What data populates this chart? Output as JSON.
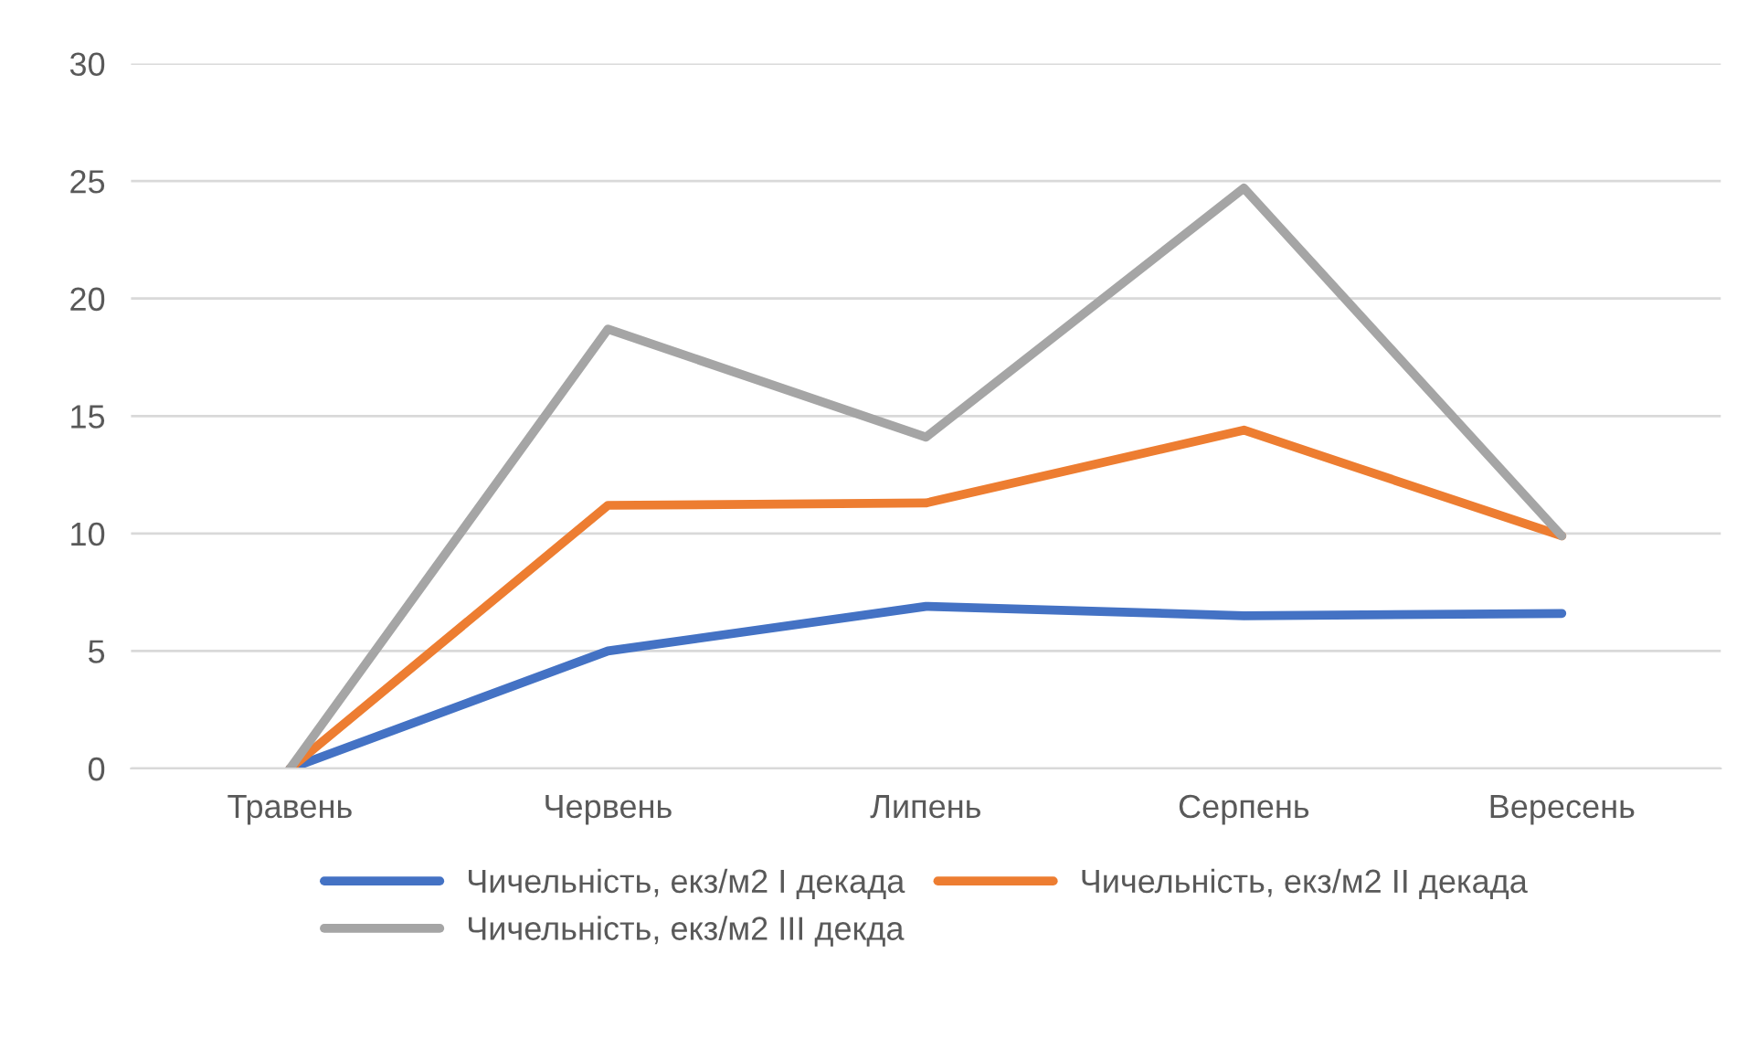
{
  "chart_data": {
    "type": "line",
    "categories": [
      "Травень",
      "Червень",
      "Липень",
      "Серпень",
      "Вересень"
    ],
    "series": [
      {
        "name": "Чичельність, екз/м2 І декада",
        "color": "#4472c4",
        "values": [
          0,
          5.0,
          6.9,
          6.5,
          6.6
        ]
      },
      {
        "name": "Чичельність, екз/м2 ІІ декада",
        "color": "#ed7d31",
        "values": [
          0,
          11.2,
          11.3,
          14.4,
          9.9
        ]
      },
      {
        "name": "Чичельність, екз/м2 ІІІ декда",
        "color": "#a5a5a5",
        "values": [
          0,
          18.7,
          14.1,
          24.7,
          9.9
        ]
      }
    ],
    "ylim": [
      0,
      30
    ],
    "yticks": [
      0,
      5,
      10,
      15,
      20,
      25,
      30
    ],
    "grid": "y",
    "legend": "bottom",
    "marker": "none",
    "line_style": "solid"
  }
}
